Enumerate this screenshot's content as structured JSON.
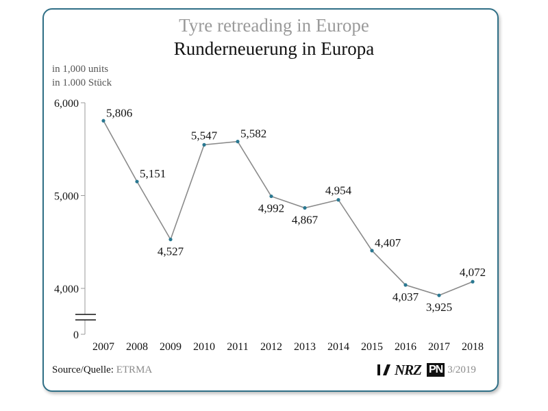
{
  "chart_data": {
    "type": "line",
    "title": "Tyre retreading in Europe",
    "subtitle": "Runderneuerung in Europa",
    "ylabel": [
      "in 1,000 units",
      "in 1.000 Stück"
    ],
    "xlabel": "",
    "categories": [
      "2007",
      "2008",
      "2009",
      "2010",
      "2011",
      "2012",
      "2013",
      "2014",
      "2015",
      "2016",
      "2017",
      "2018"
    ],
    "series": [
      {
        "name": "Tyre retreading",
        "values": [
          5806,
          5151,
          4527,
          5547,
          5582,
          4992,
          4867,
          4954,
          4407,
          4037,
          3925,
          4072
        ]
      }
    ],
    "value_labels": [
      "5,806",
      "5,151",
      "4,527",
      "5,547",
      "5,582",
      "4,992",
      "4,867",
      "4,954",
      "4,407",
      "4,037",
      "3,925",
      "4,072"
    ],
    "label_position": [
      "right",
      "right",
      "below",
      "above",
      "right",
      "below",
      "below",
      "above",
      "right",
      "below",
      "below",
      "above"
    ],
    "y_ticks": [
      4000,
      5000,
      6000
    ],
    "y_tick_labels": [
      "4,000",
      "5,000",
      "6,000"
    ],
    "y_zero_label": "0",
    "ylim": [
      3500,
      6000
    ],
    "axis_break": true,
    "grid": false,
    "line_color": "#8a8a8a",
    "marker_color": "#2a7891"
  },
  "footer": {
    "source_label": "Source/Quelle:",
    "source_value": "ETRMA",
    "logo_nrz": "NRZ",
    "logo_pn": "PN",
    "issue": "3/2019"
  },
  "colors": {
    "border": "#2f6f86",
    "title_en": "#9a9a9a"
  }
}
